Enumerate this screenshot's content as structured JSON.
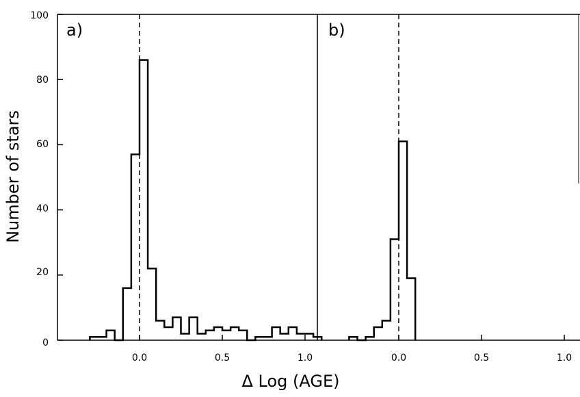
{
  "chart_data": {
    "type": "histogram",
    "xlabel": "Δ Log (AGE)",
    "ylabel": "Number of stars",
    "ylim": [
      0,
      100
    ],
    "yticks": [
      0,
      20,
      40,
      60,
      80,
      100
    ],
    "grid": false,
    "shared_y_axis": true,
    "reference_line": {
      "x": 0.0,
      "style": "dashed"
    },
    "panels": [
      {
        "label": "a)",
        "xlim": [
          -0.48,
          1.1
        ],
        "xticks": [
          0.0,
          0.5,
          1.0
        ],
        "xtick_labels": [
          "0.0",
          "0.5",
          "1.0"
        ],
        "bin_edges": [
          -0.3,
          -0.25,
          -0.2,
          -0.15,
          -0.1,
          -0.05,
          0.0,
          0.05,
          0.1,
          0.15,
          0.2,
          0.25,
          0.3,
          0.35,
          0.4,
          0.45,
          0.5,
          0.55,
          0.6,
          0.65,
          0.7,
          0.75,
          0.8,
          0.85,
          0.9,
          0.95,
          1.0,
          1.05,
          1.1
        ],
        "counts": [
          1,
          1,
          3,
          0,
          16,
          57,
          86,
          22,
          6,
          4,
          7,
          2,
          7,
          2,
          3,
          4,
          3,
          4,
          3,
          0,
          1,
          1,
          4,
          2,
          4,
          2,
          2,
          1
        ]
      },
      {
        "label": "b)",
        "xlim": [
          -0.48,
          1.1
        ],
        "xticks": [
          0.0,
          0.5,
          1.0
        ],
        "xtick_labels": [
          "0.0",
          "0.5",
          "1.0"
        ],
        "bin_edges": [
          -0.3,
          -0.25,
          -0.2,
          -0.15,
          -0.1,
          -0.05,
          0.0,
          0.05,
          0.1
        ],
        "counts": [
          1,
          0,
          1,
          4,
          6,
          31,
          61,
          19
        ]
      }
    ],
    "tick_labels": {
      "left_axis": [
        "0",
        "20",
        "40",
        "60",
        "80",
        "100"
      ],
      "panel_a": [
        "0.0",
        "0.5",
        "1.0"
      ],
      "panel_b": [
        "0.0",
        "0.5",
        "1.0"
      ]
    }
  },
  "style": {
    "line_color": "#000000",
    "background": "#ffffff"
  }
}
